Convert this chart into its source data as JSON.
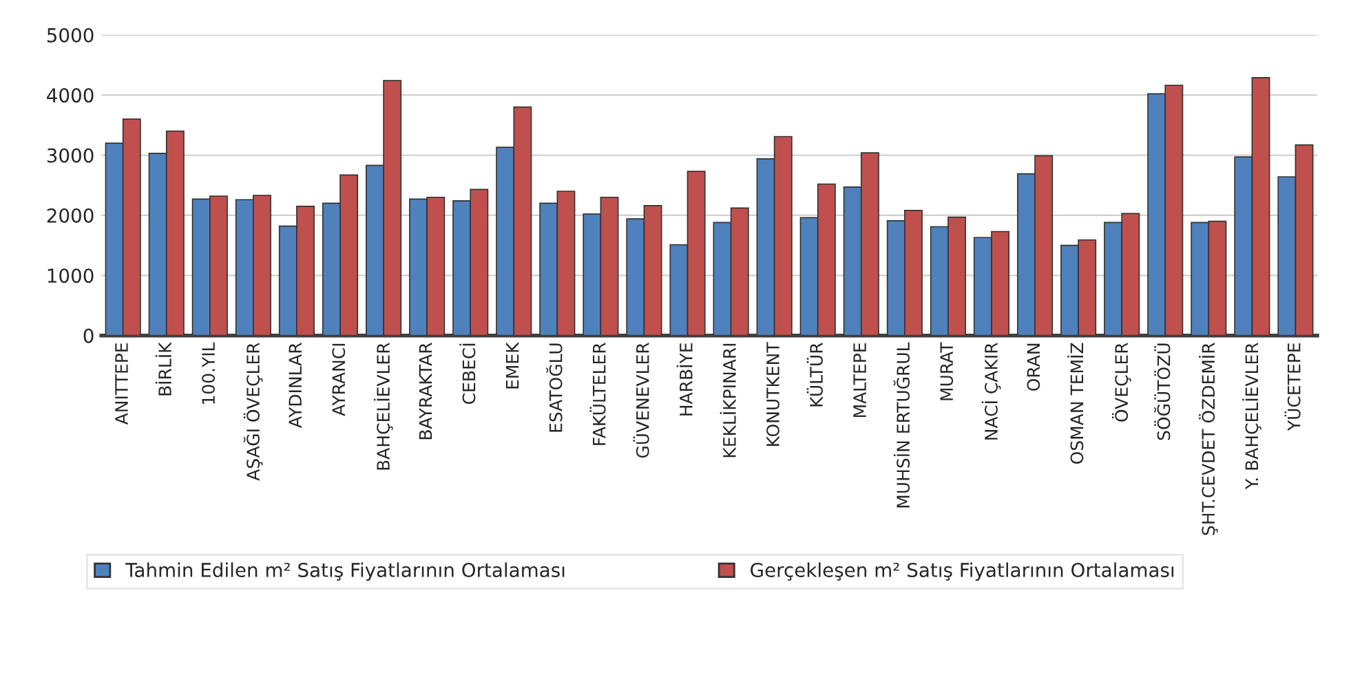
{
  "chart_data": {
    "type": "bar",
    "categories": [
      "ANITTEPE",
      "BİRLİK",
      "100.YIL",
      "AŞAĞI ÖVEÇLER",
      "AYDINLAR",
      "AYRANCI",
      "BAHÇELİEVLER",
      "BAYRAKTAR",
      "CEBECİ",
      "EMEK",
      "ESATOĞLU",
      "FAKÜLTELER",
      "GÜVENEVLER",
      "HARBİYE",
      "KEKLİKPINARI",
      "KONUTKENT",
      "KÜLTÜR",
      "MALTEPE",
      "MUHSİN ERTUĞRUL",
      "MURAT",
      "NACİ ÇAKIR",
      "ORAN",
      "OSMAN TEMİZ",
      "ÖVEÇLER",
      "SÖĞÜTÖZÜ",
      "ŞHT.CEVDET ÖZDEMİR",
      "Y. BAHÇELİEVLER",
      "YÜCETEPE"
    ],
    "series": [
      {
        "name": "Tahmin Edilen m² Satış Fiyatlarının Ortalaması",
        "color": "#4f81bd",
        "values": [
          3200,
          3030,
          2270,
          2260,
          1820,
          2200,
          2830,
          2270,
          2240,
          3130,
          2200,
          2020,
          1940,
          1510,
          1880,
          2940,
          1960,
          2470,
          1910,
          1810,
          1630,
          2690,
          1500,
          1880,
          4020,
          1880,
          2970,
          2640
        ]
      },
      {
        "name": "Gerçekleşen m² Satış Fiyatlarının Ortalaması",
        "color": "#c0504d",
        "values": [
          3600,
          3400,
          2320,
          2330,
          2150,
          2670,
          4240,
          2300,
          2430,
          3800,
          2400,
          2300,
          2160,
          2730,
          2120,
          3310,
          2520,
          3040,
          2080,
          1970,
          1730,
          2990,
          1590,
          2030,
          4160,
          1900,
          4290,
          3170
        ]
      }
    ],
    "ylim": [
      0,
      5000
    ],
    "yticks": [
      0,
      1000,
      2000,
      3000,
      4000,
      5000
    ],
    "grid": "y",
    "legend": "bottom"
  }
}
